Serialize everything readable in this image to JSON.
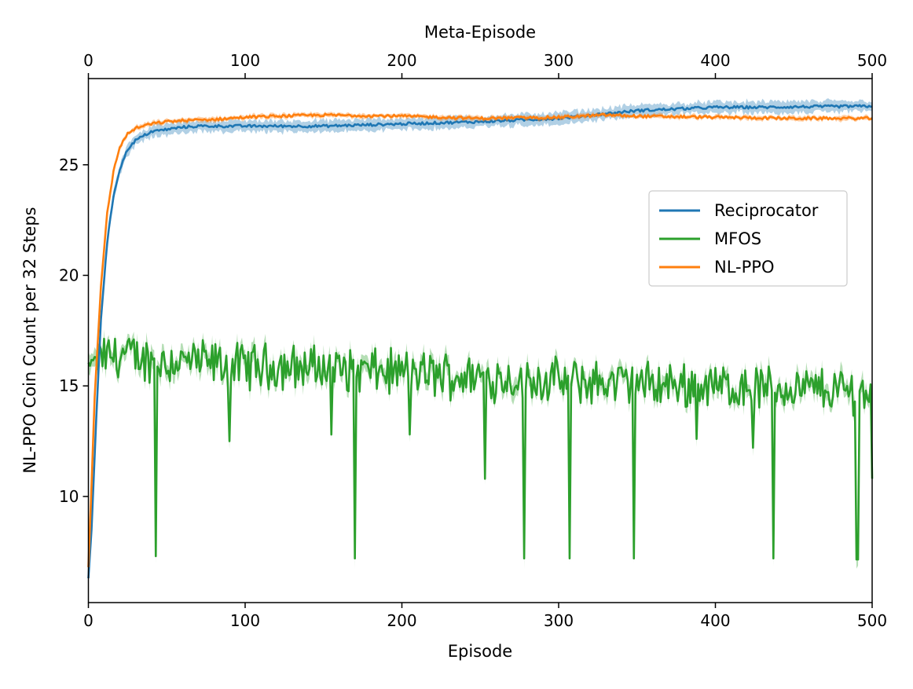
{
  "chart_data": {
    "type": "line",
    "title": "",
    "xlabel": "Episode",
    "x2label": "Meta-Episode",
    "ylabel": "NL-PPO Coin Count per 32 Steps",
    "xlim": [
      0,
      500
    ],
    "ylim": [
      5.2,
      28.9
    ],
    "xticks": [
      0,
      100,
      200,
      300,
      400,
      500
    ],
    "x2ticks": [
      0,
      100,
      200,
      300,
      400,
      500
    ],
    "yticks": [
      10,
      15,
      20,
      25
    ],
    "grid": false,
    "legend_position": "center-right",
    "series": [
      {
        "name": "Reciprocator",
        "color": "#1f77b4",
        "x": [
          0,
          2,
          5,
          8,
          12,
          16,
          20,
          25,
          30,
          40,
          50,
          60,
          70,
          80,
          100,
          150,
          200,
          250,
          300,
          350,
          400,
          430,
          450,
          500
        ],
        "values": [
          6.3,
          8.5,
          13.5,
          18.0,
          21.5,
          23.6,
          24.8,
          25.7,
          26.1,
          26.5,
          26.6,
          26.7,
          26.75,
          26.75,
          26.75,
          26.75,
          26.85,
          26.95,
          27.1,
          27.45,
          27.6,
          27.6,
          27.62,
          27.65
        ],
        "band": 0.25
      },
      {
        "name": "MFOS",
        "color": "#2ca02c",
        "x": [
          0,
          5,
          10,
          20,
          30,
          43,
          60,
          80,
          90,
          120,
          155,
          170,
          200,
          253,
          278,
          307,
          348,
          400,
          437,
          490,
          500
        ],
        "values": [
          16.0,
          16.2,
          16.3,
          16.4,
          16.3,
          16.1,
          16.1,
          16.0,
          15.9,
          15.9,
          15.8,
          15.7,
          15.6,
          15.4,
          15.3,
          15.2,
          15.1,
          15.0,
          14.9,
          14.8,
          14.7
        ],
        "noise_amp": 0.9,
        "dips": [
          {
            "x": 43,
            "y": 7.3
          },
          {
            "x": 170,
            "y": 7.2
          },
          {
            "x": 278,
            "y": 7.2
          },
          {
            "x": 307,
            "y": 7.2
          },
          {
            "x": 348,
            "y": 7.2
          },
          {
            "x": 437,
            "y": 7.2
          },
          {
            "x": 490,
            "y": 7.15
          },
          {
            "x": 491,
            "y": 7.15
          },
          {
            "x": 90,
            "y": 12.5
          },
          {
            "x": 155,
            "y": 12.8
          },
          {
            "x": 253,
            "y": 10.8
          },
          {
            "x": 205,
            "y": 12.8
          },
          {
            "x": 388,
            "y": 12.6
          },
          {
            "x": 424,
            "y": 12.2
          },
          {
            "x": 500,
            "y": 10.8
          }
        ],
        "band": 0.35
      },
      {
        "name": "NL-PPO",
        "color": "#ff7f0e",
        "x": [
          0,
          2,
          4,
          8,
          12,
          16,
          20,
          25,
          30,
          40,
          50,
          60,
          80,
          100,
          120,
          150,
          200,
          250,
          300,
          330,
          350,
          400,
          450,
          500
        ],
        "values": [
          6.8,
          10.5,
          14.5,
          19.5,
          22.8,
          24.7,
          25.8,
          26.4,
          26.65,
          26.85,
          26.95,
          27.0,
          27.05,
          27.15,
          27.2,
          27.25,
          27.2,
          27.1,
          27.15,
          27.25,
          27.2,
          27.15,
          27.1,
          27.1
        ],
        "band": 0.1
      }
    ]
  }
}
